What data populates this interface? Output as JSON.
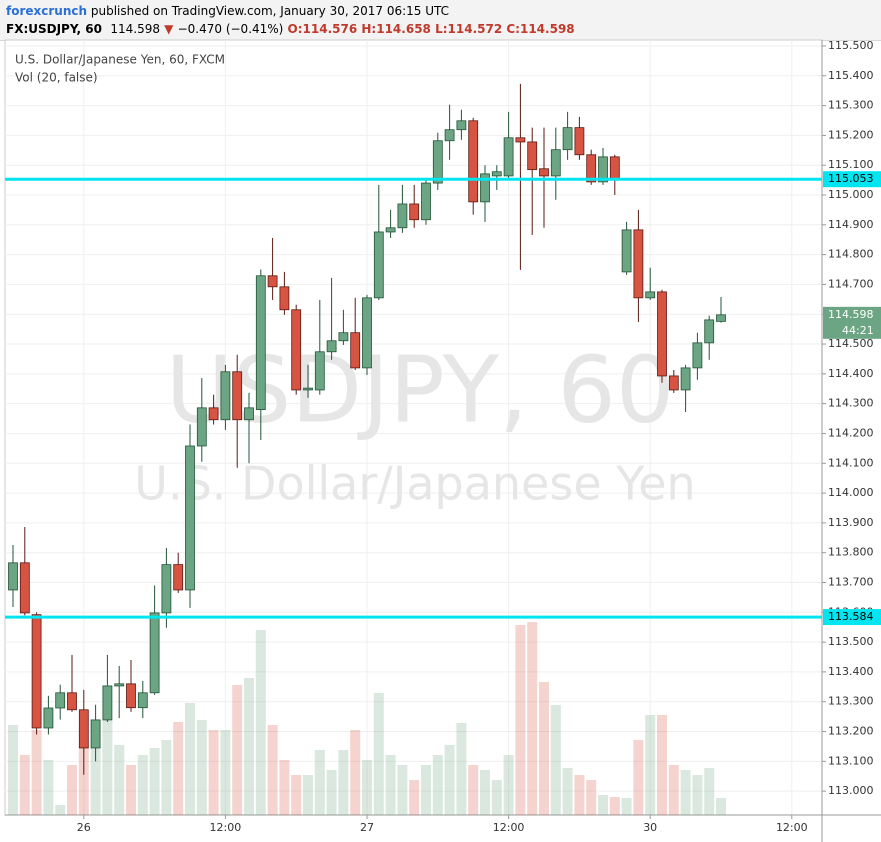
{
  "header": {
    "publisher": "forexcrunch",
    "published": " published on TradingView.com, January 30, 2017 06:15 UTC",
    "symbol": "FX:USDJPY, 60",
    "last": "114.598",
    "change": "−0.470 (−0.41%)",
    "open": "O:114.576",
    "high": "H:114.658",
    "low": "L:114.572",
    "close": "C:114.598"
  },
  "chart_data": {
    "type": "candlestick",
    "title": "U.S. Dollar/Japanese Yen, 60, FXCM",
    "indicator": "Vol (20, false)",
    "watermark": "USDJPY, 60",
    "watermark_sub": "U.S. Dollar/Japanese Yen",
    "up_color": "#6ba583",
    "down_color": "#d75442",
    "open": [
      113.675,
      113.766,
      113.592,
      113.212,
      113.279,
      113.33,
      113.273,
      113.145,
      113.239,
      113.353,
      113.36,
      113.28,
      113.33,
      113.598,
      113.76,
      113.675,
      114.158,
      114.286,
      114.246,
      114.407,
      114.246,
      114.28,
      114.729,
      114.692,
      114.615,
      114.346,
      114.346,
      114.474,
      114.511,
      114.538,
      114.42,
      114.655,
      114.876,
      114.89,
      114.97,
      114.917,
      115.04,
      115.182,
      115.219,
      115.249,
      114.977,
      115.064,
      115.064,
      115.192,
      115.178,
      115.088,
      115.064,
      115.152,
      115.226,
      115.135,
      115.044,
      115.128,
      114.742,
      114.883,
      114.655,
      114.675,
      114.393,
      114.346,
      114.42,
      114.504,
      114.576
    ],
    "high": [
      113.826,
      113.886,
      113.6,
      113.32,
      113.357,
      113.457,
      113.34,
      113.29,
      113.457,
      113.42,
      113.44,
      113.37,
      113.69,
      113.816,
      113.8,
      114.23,
      114.386,
      114.33,
      114.43,
      114.464,
      114.336,
      114.75,
      114.856,
      114.742,
      114.632,
      114.43,
      114.648,
      114.722,
      114.615,
      114.655,
      114.665,
      115.034,
      114.95,
      115.034,
      115.034,
      115.05,
      115.209,
      115.303,
      115.286,
      115.259,
      115.1,
      115.1,
      115.279,
      115.373,
      115.226,
      115.226,
      115.226,
      115.279,
      115.262,
      115.152,
      115.158,
      115.135,
      114.91,
      114.95,
      114.756,
      114.682,
      114.413,
      114.43,
      114.538,
      114.595,
      114.658
    ],
    "low": [
      113.618,
      113.59,
      113.19,
      113.19,
      113.24,
      113.266,
      113.055,
      113.1,
      113.232,
      113.245,
      113.266,
      113.245,
      113.323,
      113.548,
      113.665,
      113.615,
      114.105,
      114.23,
      114.212,
      114.085,
      114.1,
      114.178,
      114.648,
      114.598,
      114.33,
      114.32,
      114.33,
      114.447,
      114.497,
      114.413,
      114.396,
      114.648,
      114.856,
      114.873,
      114.89,
      114.9,
      115.017,
      115.118,
      115.185,
      114.934,
      114.91,
      115.017,
      115.051,
      114.749,
      114.866,
      114.89,
      114.984,
      115.118,
      115.118,
      115.034,
      115.034,
      115.0,
      114.732,
      114.574,
      114.648,
      114.37,
      114.336,
      114.272,
      114.38,
      114.447,
      114.572
    ],
    "close": [
      113.766,
      113.598,
      113.212,
      113.279,
      113.33,
      113.273,
      113.145,
      113.239,
      113.353,
      113.36,
      113.28,
      113.33,
      113.598,
      113.76,
      113.675,
      114.158,
      114.286,
      114.246,
      114.407,
      114.246,
      114.286,
      114.729,
      114.692,
      114.615,
      114.346,
      114.352,
      114.474,
      114.511,
      114.538,
      114.42,
      114.655,
      114.876,
      114.89,
      114.97,
      114.917,
      115.04,
      115.182,
      115.219,
      115.249,
      114.977,
      115.071,
      115.078,
      115.192,
      115.178,
      115.085,
      115.064,
      115.152,
      115.226,
      115.135,
      115.044,
      115.128,
      115.051,
      114.883,
      114.655,
      114.675,
      114.393,
      114.346,
      114.42,
      114.504,
      114.581,
      114.598
    ],
    "volume": [
      90,
      60,
      85,
      55,
      10,
      50,
      70,
      95,
      95,
      70,
      50,
      60,
      67,
      75,
      93,
      112,
      95,
      85,
      85,
      130,
      137,
      185,
      90,
      55,
      40,
      40,
      65,
      45,
      65,
      85,
      55,
      122,
      60,
      50,
      35,
      50,
      60,
      70,
      92,
      50,
      45,
      35,
      60,
      190,
      193,
      133,
      110,
      47,
      40,
      35,
      20,
      18,
      17,
      75,
      100,
      100,
      50,
      45,
      40,
      47,
      17
    ],
    "ylim": [
      112.92,
      115.52
    ],
    "yticks": [
      {
        "value": 113.0,
        "label": "113.000"
      },
      {
        "value": 113.1,
        "label": "113.100"
      },
      {
        "value": 113.2,
        "label": "113.200"
      },
      {
        "value": 113.3,
        "label": "113.300"
      },
      {
        "value": 113.4,
        "label": "113.400"
      },
      {
        "value": 113.5,
        "label": "113.500"
      },
      {
        "value": 113.6,
        "label": "113.600"
      },
      {
        "value": 113.7,
        "label": "113.700"
      },
      {
        "value": 113.8,
        "label": "113.800"
      },
      {
        "value": 113.9,
        "label": "113.900"
      },
      {
        "value": 114.0,
        "label": "114.000"
      },
      {
        "value": 114.1,
        "label": "114.100"
      },
      {
        "value": 114.2,
        "label": "114.200"
      },
      {
        "value": 114.3,
        "label": "114.300"
      },
      {
        "value": 114.4,
        "label": "114.400"
      },
      {
        "value": 114.5,
        "label": "114.500"
      },
      {
        "value": 114.6,
        "label": "114.600"
      },
      {
        "value": 114.7,
        "label": "114.700"
      },
      {
        "value": 114.8,
        "label": "114.800"
      },
      {
        "value": 114.9,
        "label": "114.900"
      },
      {
        "value": 115.0,
        "label": "115.000"
      },
      {
        "value": 115.1,
        "label": "115.100"
      },
      {
        "value": 115.2,
        "label": "115.200"
      },
      {
        "value": 115.3,
        "label": "115.300"
      },
      {
        "value": 115.4,
        "label": "115.400"
      },
      {
        "value": 115.5,
        "label": "115.500"
      }
    ],
    "xticks": [
      {
        "value": 6,
        "label": "26"
      },
      {
        "value": 18,
        "label": "12:00"
      },
      {
        "value": 30,
        "label": "27"
      },
      {
        "value": 42,
        "label": "12:00"
      },
      {
        "value": 54,
        "label": "30"
      },
      {
        "value": 66,
        "label": "12:00"
      }
    ],
    "hlines": [
      115.053,
      113.584
    ],
    "hline_color": "#00e5f0",
    "last_price": 114.598,
    "countdown": "44:21",
    "grid": true
  }
}
